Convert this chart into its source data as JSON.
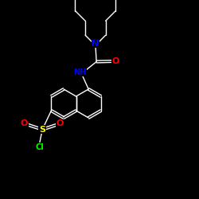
{
  "background_color": "#000000",
  "bond_color": "#ffffff",
  "N_color": "#0000ff",
  "O_color": "#ff0000",
  "S_color": "#ffff00",
  "Cl_color": "#00ff00",
  "figsize": [
    2.5,
    2.5
  ],
  "dpi": 100,
  "atoms": {
    "N": {
      "label": "N",
      "color": "#0000ff"
    },
    "O": {
      "label": "O",
      "color": "#ff0000"
    },
    "S": {
      "label": "S",
      "color": "#ffff00"
    },
    "Cl": {
      "label": "Cl",
      "color": "#00ff00"
    },
    "NH": {
      "label": "NH",
      "color": "#0000ff"
    }
  },
  "layout": {
    "xlim": [
      0,
      10
    ],
    "ylim": [
      0,
      10
    ]
  }
}
